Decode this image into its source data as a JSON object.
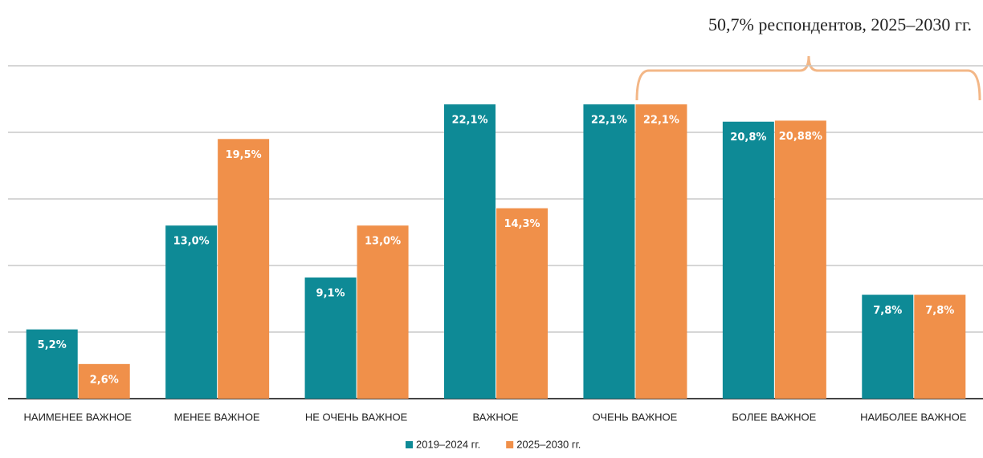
{
  "chart_data": {
    "type": "bar",
    "annotation": "50,7% респондентов, 2025–2030 гг.",
    "categories": [
      "НАИМЕНЕЕ ВАЖНОЕ",
      "МЕНЕЕ ВАЖНОЕ",
      "НЕ ОЧЕНЬ ВАЖНОЕ",
      "ВАЖНОЕ",
      "ОЧЕНЬ ВАЖНОЕ",
      "БОЛЕЕ ВАЖНОЕ",
      "НАИБОЛЕЕ ВАЖНОЕ"
    ],
    "series": [
      {
        "name": "2019–2024 гг.",
        "color": "#0e8a96",
        "values": [
          5.2,
          13.0,
          9.1,
          22.1,
          22.1,
          20.8,
          7.8
        ],
        "value_labels": [
          "5,2%",
          "13,0%",
          "9,1%",
          "22,1%",
          "22,1%",
          "20,8%",
          "7,8%"
        ]
      },
      {
        "name": "2025–2030 гг.",
        "color": "#f0904a",
        "values": [
          2.6,
          19.5,
          13.0,
          14.3,
          22.1,
          20.88,
          7.8
        ],
        "value_labels": [
          "2,6%",
          "19,5%",
          "13,0%",
          "14,3%",
          "22,1%",
          "20,88%",
          "7,8%"
        ]
      }
    ],
    "ylim": [
      0,
      25
    ],
    "yticks": [
      0,
      5,
      10,
      15,
      20,
      25
    ],
    "grid": true,
    "legend": "bottom"
  }
}
